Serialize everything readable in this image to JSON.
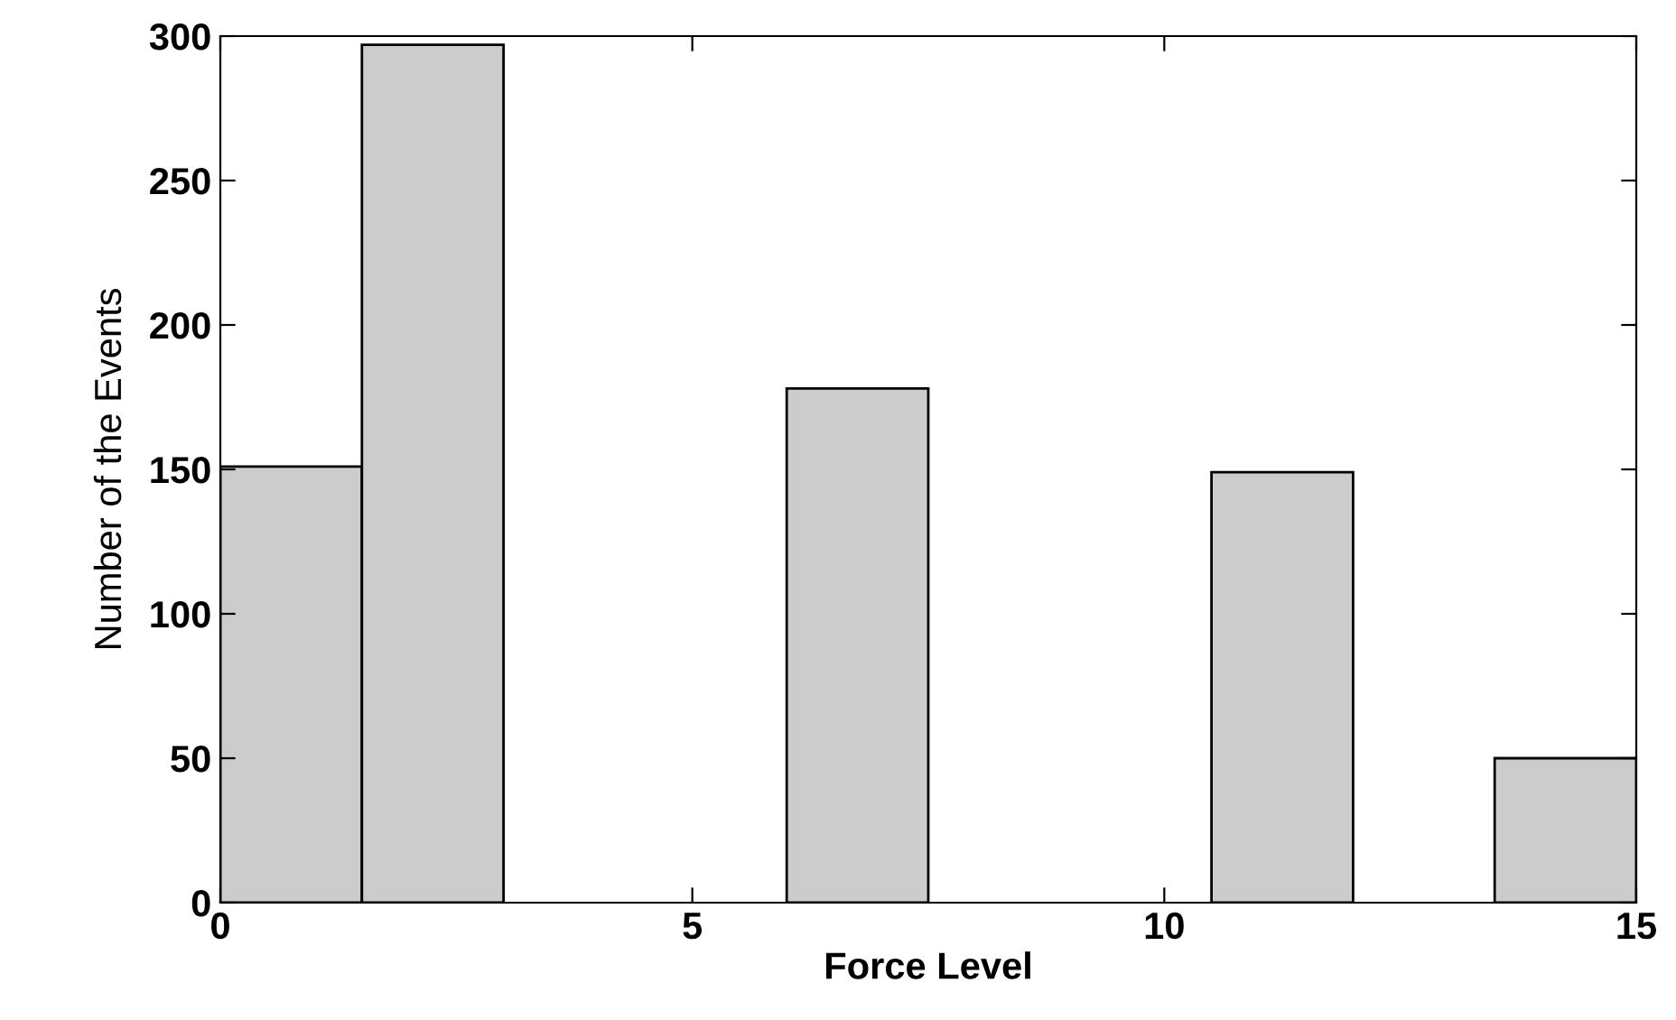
{
  "chart_data": {
    "type": "histogram",
    "xlabel": "Force Level",
    "ylabel": "Number of the Events",
    "bins": [
      0,
      1.5,
      3,
      4.5,
      6,
      7.5,
      9,
      10.5,
      12,
      13.5,
      15
    ],
    "values": [
      151,
      297,
      0,
      0,
      178,
      0,
      0,
      149,
      0,
      50
    ],
    "color": "#cccccc",
    "xlim": [
      0,
      15
    ],
    "xticks": [
      0,
      5,
      10,
      15
    ],
    "ylim": [
      0,
      300
    ],
    "yticks": [
      0,
      50,
      100,
      150,
      200,
      250,
      300
    ],
    "grid": false,
    "legend": false
  }
}
